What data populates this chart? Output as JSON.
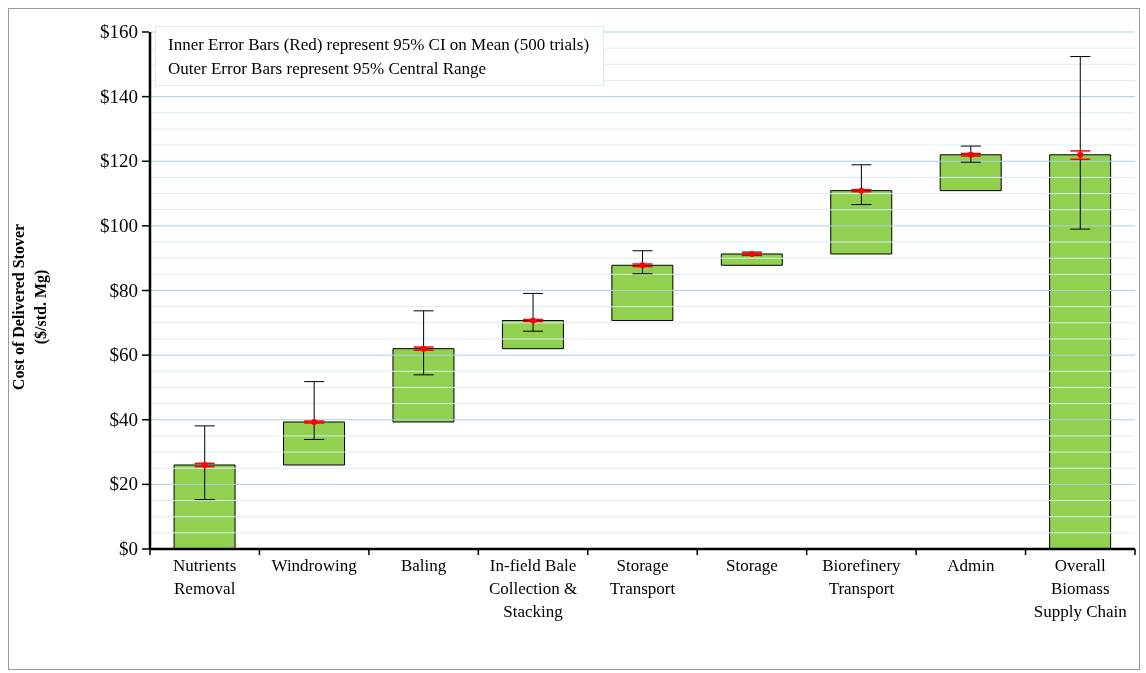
{
  "chart_data": {
    "type": "bar",
    "ylabel": "Cost of Delivered Stover ($/std. Mg)",
    "annotations": [
      "Inner Error Bars (Red) represent 95% CI on Mean (500 trials)",
      "Outer Error Bars represent 95% Central Range"
    ],
    "categories": [
      "Nutrients Removal",
      "Windrowing",
      "Baling",
      "In-field Bale Collection & Stacking",
      "Storage Transport",
      "Storage",
      "Biorefinery Transport",
      "Admin",
      "Overall Biomass Supply Chain"
    ],
    "series": [
      {
        "type": "bar",
        "color": "#92d050",
        "base": [
          0,
          26,
          39.3,
          62,
          70.7,
          87.8,
          91.3,
          110.9,
          0
        ],
        "values": [
          26,
          13.3,
          22.7,
          8.7,
          17.1,
          3.5,
          19.6,
          11.1,
          122
        ],
        "errors": [
          [
            15.3,
            38.1
          ],
          [
            33.9,
            51.8
          ],
          [
            53.9,
            73.7
          ],
          [
            67.4,
            79.1
          ],
          [
            85.2,
            92.3
          ],
          [
            90.8,
            91.9
          ],
          [
            106.6,
            118.9
          ],
          [
            119.7,
            124.7
          ],
          [
            99,
            152.4
          ]
        ]
      },
      {
        "type": "scatter",
        "color": "#ff0000",
        "marker": "circle",
        "x": [
          "Nutrients Removal",
          "Windrowing",
          "Baling",
          "In-field Bale Collection & Stacking",
          "Storage Transport",
          "Storage",
          "Biorefinery Transport",
          "Admin",
          "Overall Biomass Supply Chain"
        ],
        "values": [
          26,
          39.3,
          62,
          70.7,
          87.8,
          91.3,
          110.9,
          122,
          122
        ],
        "errors": [
          0.5,
          0.3,
          0.5,
          0.3,
          0.4,
          0.3,
          0.3,
          0.4,
          [
            120.6,
            123.2
          ]
        ]
      }
    ],
    "ylim": [
      0,
      160
    ],
    "yticks": [
      {
        "value": 0,
        "label": "$0"
      },
      {
        "value": 5,
        "label": null
      },
      {
        "value": 10,
        "label": null
      },
      {
        "value": 15,
        "label": null
      },
      {
        "value": 20,
        "label": "$20"
      },
      {
        "value": 25,
        "label": null
      },
      {
        "value": 30,
        "label": null
      },
      {
        "value": 35,
        "label": null
      },
      {
        "value": 40,
        "label": "$40"
      },
      {
        "value": 45,
        "label": null
      },
      {
        "value": 50,
        "label": null
      },
      {
        "value": 55,
        "label": null
      },
      {
        "value": 60,
        "label": "$60"
      },
      {
        "value": 65,
        "label": null
      },
      {
        "value": 70,
        "label": null
      },
      {
        "value": 75,
        "label": null
      },
      {
        "value": 80,
        "label": "$80"
      },
      {
        "value": 85,
        "label": null
      },
      {
        "value": 90,
        "label": null
      },
      {
        "value": 95,
        "label": null
      },
      {
        "value": 100,
        "label": "$100"
      },
      {
        "value": 105,
        "label": null
      },
      {
        "value": 110,
        "label": null
      },
      {
        "value": 115,
        "label": null
      },
      {
        "value": 120,
        "label": "$120"
      },
      {
        "value": 125,
        "label": null
      },
      {
        "value": 130,
        "label": null
      },
      {
        "value": 135,
        "label": null
      },
      {
        "value": 140,
        "label": "$140"
      },
      {
        "value": 145,
        "label": null
      },
      {
        "value": 150,
        "label": null
      },
      {
        "value": 155,
        "label": null
      },
      {
        "value": 160,
        "label": "$160"
      }
    ],
    "grid": "y"
  }
}
